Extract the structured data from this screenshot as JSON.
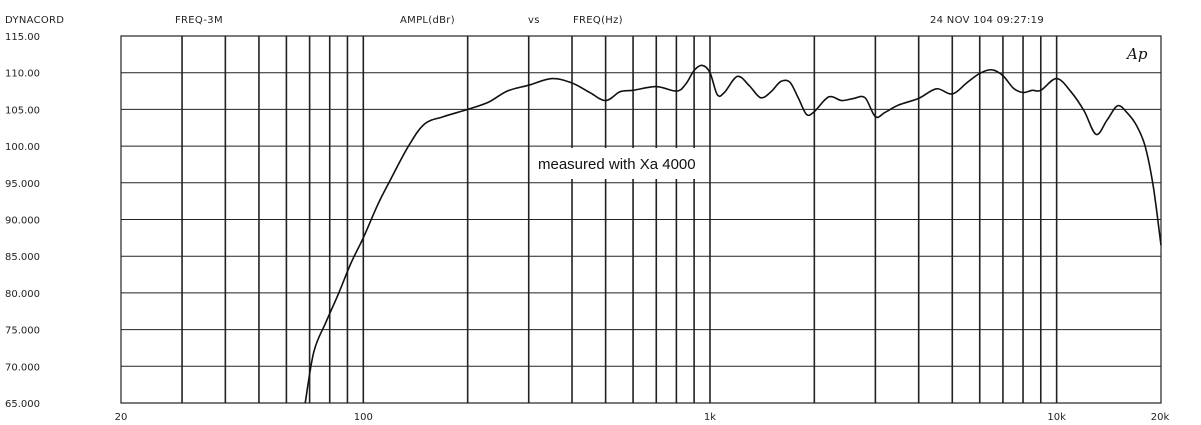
{
  "header": {
    "brand": "DYNACORD",
    "mode": "FREQ-3M",
    "yquantity": "AMPL(dBr)",
    "vs": "vs",
    "xquantity": "FREQ(Hz)",
    "timestamp": "24 NOV 104 09:27:19"
  },
  "logo_text": "Ap",
  "chart_data": {
    "type": "line",
    "title": "",
    "xlabel": "FREQ(Hz)",
    "ylabel": "AMPL(dBr)",
    "xscale": "log",
    "xlim": [
      20,
      20000
    ],
    "ylim": [
      65,
      115
    ],
    "grid": true,
    "legend": "none",
    "line_color": "#111111",
    "x_tick_labels": [
      {
        "value": 20,
        "label": "20"
      },
      {
        "value": 100,
        "label": "100"
      },
      {
        "value": 1000,
        "label": "1k"
      },
      {
        "value": 10000,
        "label": "10k"
      },
      {
        "value": 20000,
        "label": "20k"
      }
    ],
    "y_tick_labels": [
      {
        "value": 115,
        "label": "115.00"
      },
      {
        "value": 110,
        "label": "110.00"
      },
      {
        "value": 105,
        "label": "105.00"
      },
      {
        "value": 100,
        "label": "100.00"
      },
      {
        "value": 95,
        "label": "95.000"
      },
      {
        "value": 90,
        "label": "90.000"
      },
      {
        "value": 85,
        "label": "85.000"
      },
      {
        "value": 80,
        "label": "80.000"
      },
      {
        "value": 75,
        "label": "75.000"
      },
      {
        "value": 70,
        "label": "70.000"
      },
      {
        "value": 65,
        "label": "65.000"
      }
    ],
    "annotations": [
      {
        "text": "measured with Xa 4000",
        "x": 650,
        "y": 98.3
      }
    ],
    "series": [
      {
        "x": [
          68,
          72,
          78,
          85,
          92,
          100,
          110,
          120,
          135,
          150,
          170,
          200,
          230,
          260,
          300,
          350,
          400,
          450,
          500,
          550,
          600,
          700,
          800,
          850,
          900,
          950,
          1000,
          1050,
          1100,
          1200,
          1300,
          1400,
          1500,
          1600,
          1700,
          1800,
          1900,
          2000,
          2200,
          2400,
          2600,
          2800,
          3000,
          3200,
          3500,
          4000,
          4500,
          5000,
          5500,
          6000,
          6500,
          7000,
          7500,
          8000,
          8500,
          9000,
          10000,
          11000,
          12000,
          13000,
          14000,
          15000,
          16000,
          17000,
          18000,
          19000,
          20000
        ],
        "y": [
          65,
          72,
          76,
          80,
          84,
          87.5,
          92,
          95.5,
          100,
          103,
          104,
          105,
          106,
          107.5,
          108.3,
          109.2,
          108.6,
          107.3,
          106.2,
          107.4,
          107.6,
          108.1,
          107.5,
          108.4,
          110.3,
          111,
          110,
          107,
          107.3,
          109.5,
          108.2,
          106.6,
          107.4,
          108.8,
          108.7,
          106.5,
          104.3,
          104.7,
          106.7,
          106.2,
          106.5,
          106.6,
          104,
          104.6,
          105.6,
          106.5,
          107.8,
          107.1,
          108.6,
          109.9,
          110.4,
          109.6,
          107.9,
          107.3,
          107.6,
          107.6,
          109.2,
          107.4,
          104.8,
          101.6,
          103.6,
          105.5,
          104.5,
          102.8,
          100,
          94.5,
          86.5
        ]
      }
    ]
  }
}
